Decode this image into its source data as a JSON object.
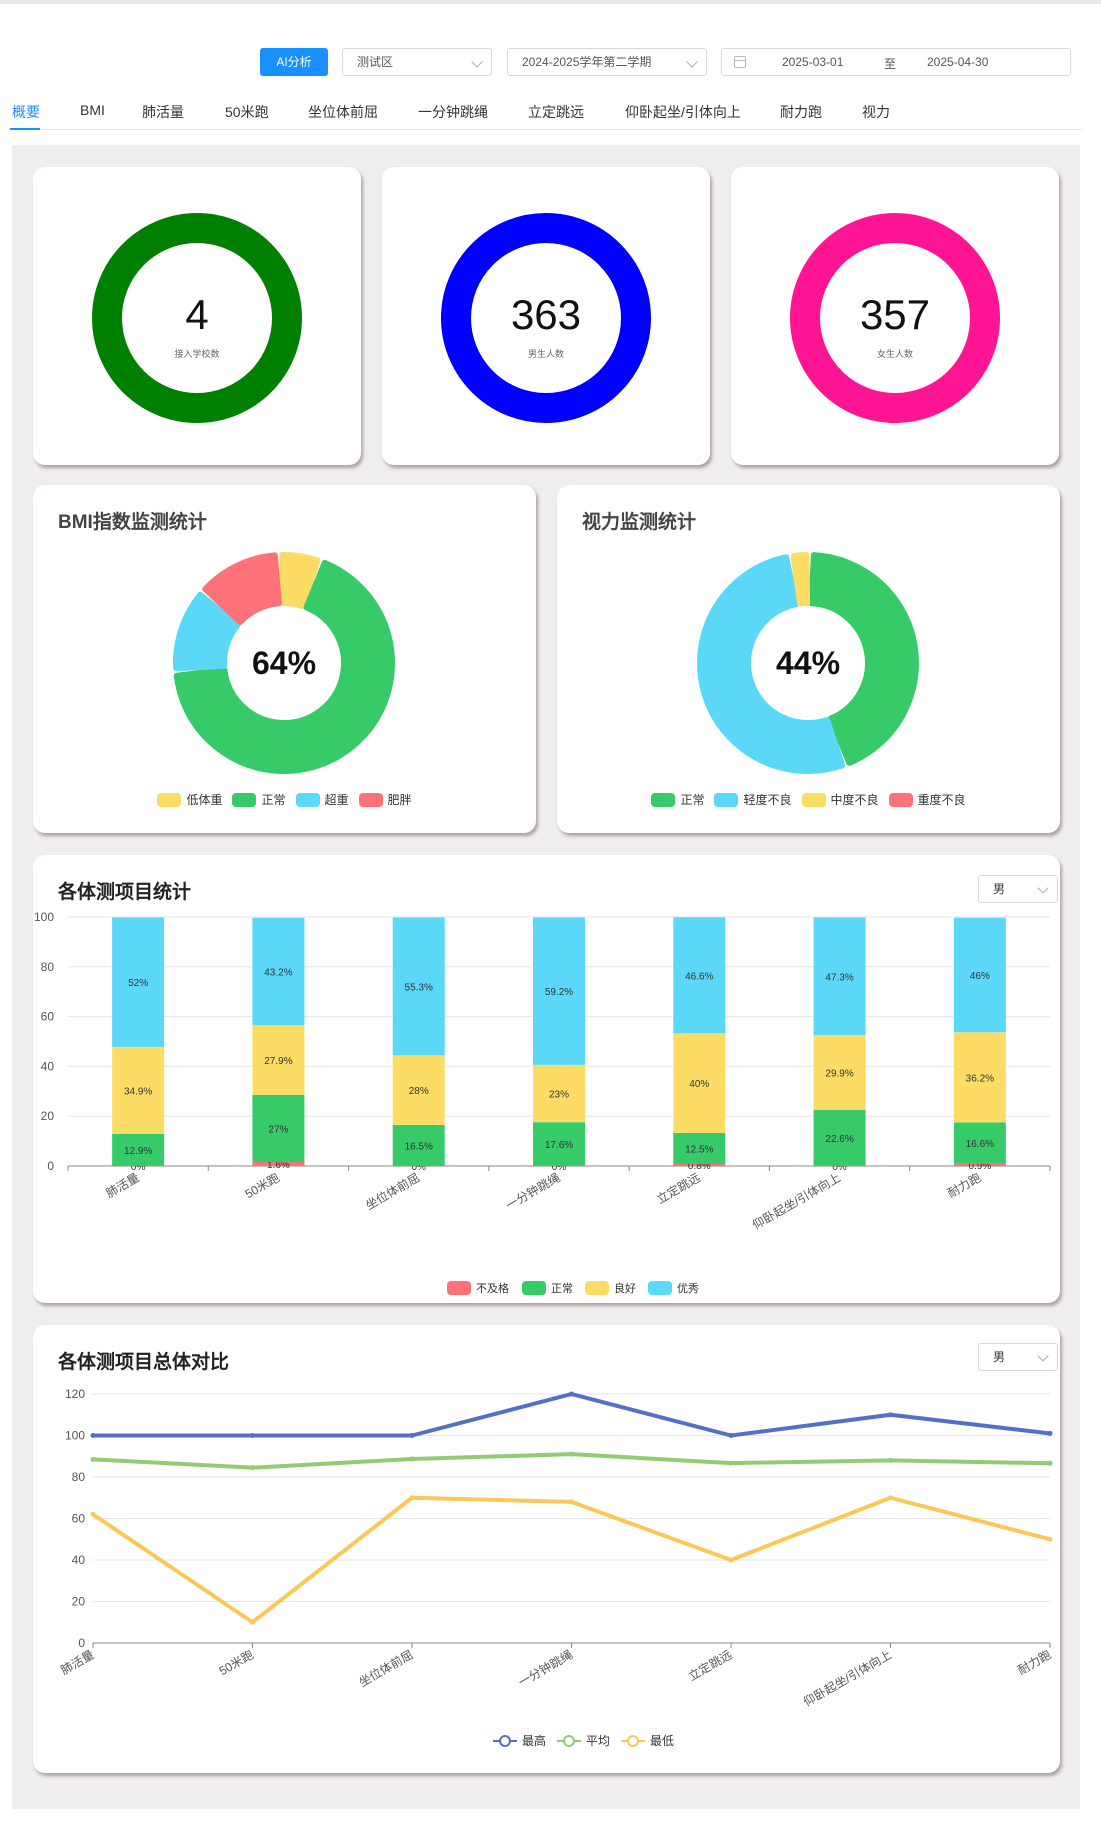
{
  "toolbar": {
    "ai_button": "AI分析",
    "district": "测试区",
    "term": "2024-2025学年第二学期",
    "date_start": "2025-03-01",
    "date_sep": "至",
    "date_end": "2025-04-30"
  },
  "tabs": [
    {
      "label": "概要",
      "active": true
    },
    {
      "label": "BMI"
    },
    {
      "label": "肺活量"
    },
    {
      "label": "50米跑"
    },
    {
      "label": "坐位体前屈"
    },
    {
      "label": "一分钟跳绳"
    },
    {
      "label": "立定跳远"
    },
    {
      "label": "仰卧起坐/引体向上"
    },
    {
      "label": "耐力跑"
    },
    {
      "label": "视力"
    }
  ],
  "stats": [
    {
      "value": "4",
      "label": "接入学校数",
      "color": "#008000"
    },
    {
      "value": "363",
      "label": "男生人数",
      "color": "#0000ff"
    },
    {
      "value": "357",
      "label": "女生人数",
      "color": "#ff1493"
    }
  ],
  "bmi": {
    "title": "BMI指数监测统计",
    "center": "64%",
    "legend": [
      {
        "label": "低体重",
        "color": "#fcdc64"
      },
      {
        "label": "正常",
        "color": "#36cb68"
      },
      {
        "label": "超重",
        "color": "#5bd8f8"
      },
      {
        "label": "肥胖",
        "color": "#fd7278"
      }
    ]
  },
  "vision": {
    "title": "视力监测统计",
    "center": "44%",
    "legend": [
      {
        "label": "正常",
        "color": "#36cb68"
      },
      {
        "label": "轻度不良",
        "color": "#5bd8f8"
      },
      {
        "label": "中度不良",
        "color": "#fcdc64"
      },
      {
        "label": "重度不良",
        "color": "#fd7278"
      }
    ]
  },
  "items_stat": {
    "title": "各体测项目统计",
    "gender": "男"
  },
  "items_compare": {
    "title": "各体测项目总体对比",
    "gender": "男"
  },
  "chart_data": [
    {
      "type": "pie",
      "title": "BMI指数监测统计",
      "center_label": "64%",
      "categories": [
        "低体重",
        "正常",
        "超重",
        "肥胖"
      ],
      "values": [
        6,
        64,
        12,
        12
      ]
    },
    {
      "type": "pie",
      "title": "视力监测统计",
      "center_label": "44%",
      "categories": [
        "正常",
        "轻度不良",
        "中度不良",
        "重度不良"
      ],
      "values": [
        44,
        53,
        3,
        0
      ]
    },
    {
      "type": "bar",
      "stacked": true,
      "title": "各体测项目统计",
      "categories": [
        "肺活量",
        "50米跑",
        "坐位体前屈",
        "一分钟跳绳",
        "立定跳远",
        "仰卧起坐/引体向上",
        "耐力跑"
      ],
      "ylim": [
        0,
        100
      ],
      "yticks": [
        0,
        20,
        40,
        60,
        80,
        100
      ],
      "legend_position": "bottom",
      "series": [
        {
          "name": "不及格",
          "color": "#fd7278",
          "values": [
            0,
            1.6,
            0,
            0,
            0.8,
            0,
            0.9
          ]
        },
        {
          "name": "正常",
          "color": "#36cb68",
          "values": [
            12.9,
            27,
            16.5,
            17.6,
            12.5,
            22.6,
            16.6
          ]
        },
        {
          "name": "良好",
          "color": "#fcdc64",
          "values": [
            34.9,
            27.9,
            28,
            23,
            40,
            29.9,
            36.2
          ]
        },
        {
          "name": "优秀",
          "color": "#5bd8f8",
          "values": [
            52,
            43.2,
            55.3,
            59.2,
            46.6,
            47.3,
            46
          ]
        }
      ]
    },
    {
      "type": "line",
      "title": "各体测项目总体对比",
      "categories": [
        "肺活量",
        "50米跑",
        "坐位体前屈",
        "一分钟跳绳",
        "立定跳远",
        "仰卧起坐/引体向上",
        "耐力跑"
      ],
      "ylim": [
        0,
        120
      ],
      "yticks": [
        0,
        20,
        40,
        60,
        80,
        100,
        120
      ],
      "legend_position": "bottom",
      "series": [
        {
          "name": "最高",
          "color": "#5470c6",
          "values": [
            100,
            100,
            100,
            120,
            100,
            110,
            101
          ]
        },
        {
          "name": "平均",
          "color": "#91cc75",
          "values": [
            88.5,
            84.5,
            88.7,
            91,
            86.7,
            88,
            86.6
          ]
        },
        {
          "name": "最低",
          "color": "#fac858",
          "values": [
            62,
            10,
            70,
            68,
            40,
            70,
            50
          ]
        }
      ]
    }
  ]
}
